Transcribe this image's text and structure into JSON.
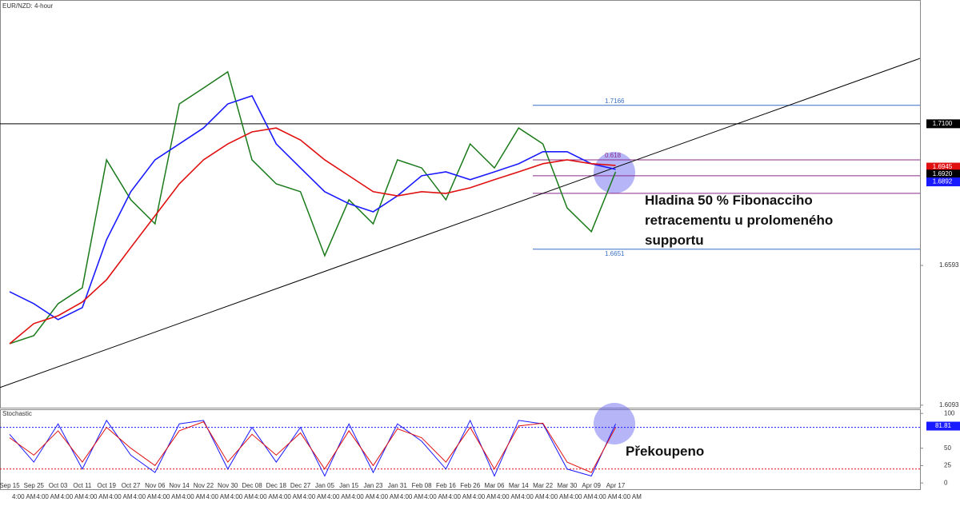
{
  "chart_data": {
    "type": "line",
    "title": "EUR/NZD: 4-hour",
    "categories": [
      "Sep 15",
      "Sep 25",
      "Oct 03",
      "Oct 11",
      "Oct 19",
      "Oct 27",
      "Nov 06",
      "Nov 14",
      "Nov 22",
      "Nov 30",
      "Dec 08",
      "Dec 18",
      "Dec 27",
      "Jan 05",
      "Jan 15",
      "Jan 23",
      "Jan 31",
      "Feb 08",
      "Feb 16",
      "Feb 26",
      "Mar 06",
      "Mar 14",
      "Mar 22",
      "Mar 30",
      "Apr 09",
      "Apr 17"
    ],
    "time_labels": [
      "4:00 AM",
      "4:00 AM",
      "4:00 AM",
      "4:00 AM",
      "4:00 AM",
      "4:00 AM",
      "4:00 AM",
      "4:00 AM",
      "4:00 AM",
      "4:00 AM",
      "4:00 AM",
      "4:00 AM",
      "4:00 AM",
      "4:00 AM",
      "4:00 AM",
      "4:00 AM",
      "4:00 AM",
      "4:00 AM",
      "4:00 AM",
      "4:00 AM",
      "4:00 AM",
      "4:00 AM",
      "4:00 AM",
      "4:00 AM",
      "4:00 AM",
      "4:00 AM"
    ],
    "series": [
      {
        "name": "Price",
        "color": "#1a7a1a",
        "values": [
          1.6313,
          1.6342,
          1.6456,
          1.6513,
          1.6971,
          1.6828,
          1.6742,
          1.7171,
          1.7228,
          1.7286,
          1.6971,
          1.6885,
          1.6857,
          1.6628,
          1.6828,
          1.6742,
          1.6971,
          1.6942,
          1.6828,
          1.7028,
          1.6942,
          1.7085,
          1.7028,
          1.6799,
          1.6714,
          1.6928
        ]
      },
      {
        "name": "MA blue",
        "color": "#1a1aff",
        "values": [
          1.6499,
          1.6456,
          1.6399,
          1.6442,
          1.6685,
          1.6857,
          1.6971,
          1.7028,
          1.7085,
          1.7171,
          1.72,
          1.7028,
          1.6942,
          1.6857,
          1.6814,
          1.6785,
          1.6842,
          1.6914,
          1.6928,
          1.69,
          1.6928,
          1.6957,
          1.7,
          1.7,
          1.6957,
          1.6937
        ]
      },
      {
        "name": "MA red",
        "color": "#e01010",
        "values": [
          1.6313,
          1.6385,
          1.6413,
          1.6462,
          1.6542,
          1.6657,
          1.6771,
          1.6885,
          1.6971,
          1.7028,
          1.7071,
          1.7085,
          1.7042,
          1.6971,
          1.6914,
          1.6857,
          1.6842,
          1.6857,
          1.6851,
          1.6871,
          1.69,
          1.6928,
          1.6957,
          1.6971,
          1.6957,
          1.6951
        ]
      }
    ],
    "ylim": [
      1.6084,
      1.7543
    ],
    "yticks": [
      {
        "value": 1.6093,
        "label": "1.6093"
      },
      {
        "value": 1.6593,
        "label": "1.6593"
      }
    ],
    "price_labels": [
      {
        "value": 1.71,
        "label": "1.7100",
        "color": "#000000"
      },
      {
        "value": 1.6945,
        "label": "1.6945",
        "color": "#e01010"
      },
      {
        "value": 1.692,
        "label": "1.6920",
        "color": "#000000"
      },
      {
        "value": 1.6892,
        "label": "1.6892",
        "color": "#1a1aff"
      }
    ],
    "fib_levels": [
      {
        "value": 1.7166,
        "label": "1.7166",
        "color": "#3a6fc4"
      },
      {
        "value": 1.6971,
        "label": "0.618",
        "color": "#8a2b8a"
      },
      {
        "value": 1.6914,
        "color": "#8a2b8a"
      },
      {
        "value": 1.6851,
        "color": "#8a2b8a"
      },
      {
        "value": 1.6651,
        "label": "1.6651",
        "color": "#3a6fc4"
      }
    ],
    "trendline": [
      1.6156,
      1.7334
    ],
    "annotations": [
      "Hladina 50 % Fibonacciho",
      "retracementu u prolomeného",
      "supportu",
      "Překoupeno"
    ],
    "stochastic": {
      "title": "Stochastic",
      "series": [
        {
          "name": "%K",
          "color": "#1a1aff",
          "values": [
            70,
            30,
            85,
            20,
            90,
            40,
            15,
            85,
            90,
            20,
            80,
            30,
            80,
            10,
            85,
            15,
            85,
            60,
            20,
            90,
            10,
            90,
            85,
            20,
            10,
            85
          ]
        },
        {
          "name": "%D",
          "color": "#e01010",
          "values": [
            65,
            40,
            75,
            30,
            80,
            50,
            25,
            75,
            88,
            30,
            70,
            40,
            72,
            20,
            75,
            25,
            78,
            65,
            30,
            80,
            20,
            82,
            86,
            30,
            15,
            80
          ]
        }
      ],
      "y2lim": [
        -9,
        106
      ],
      "y2ticks": [
        0,
        25,
        50,
        100
      ],
      "current": {
        "value": 81.81,
        "label": "81.81"
      },
      "levels": [
        80,
        20
      ]
    }
  }
}
